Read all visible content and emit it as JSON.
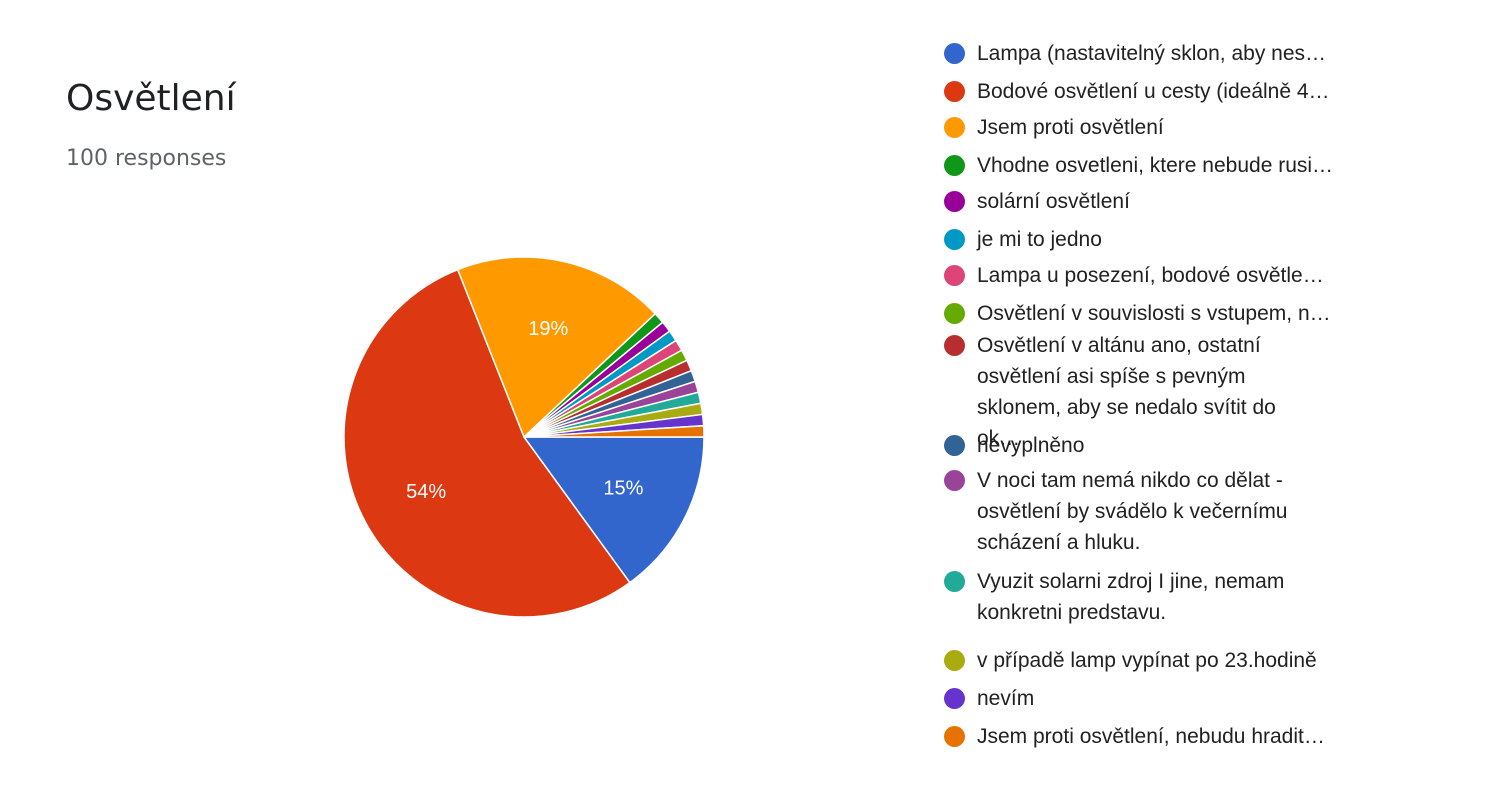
{
  "header": {
    "title": "Osvětlení",
    "subtitle": "100 responses"
  },
  "chart_data": {
    "type": "pie",
    "title": "Osvětlení",
    "total_responses": 100,
    "slices": [
      {
        "label": "Lampa (nastavitelný sklon, aby nes…",
        "value": 15,
        "color": "#3366cc",
        "display": "15%"
      },
      {
        "label": "Bodové osvětlení u cesty (ideálně 4…",
        "value": 54,
        "color": "#dc3912",
        "display": "54%"
      },
      {
        "label": "Jsem proti osvětlení",
        "value": 19,
        "color": "#ff9900",
        "display": "19%"
      },
      {
        "label": "Vhodne osvetleni, ktere nebude rusi…",
        "value": 1,
        "color": "#109618",
        "display": ""
      },
      {
        "label": "solární osvětlení",
        "value": 1,
        "color": "#990099",
        "display": ""
      },
      {
        "label": "je mi to jedno",
        "value": 1,
        "color": "#0099c6",
        "display": ""
      },
      {
        "label": "Lampa u posezení, bodové osvětle…",
        "value": 1,
        "color": "#dd4477",
        "display": ""
      },
      {
        "label": "Osvětlení v souvislosti s vstupem, n…",
        "value": 1,
        "color": "#66aa00",
        "display": ""
      },
      {
        "label": "Osvětlení v altánu ano, ostatní osvětlení asi spíše s pevným sklonem, aby se nedalo svítit do ok…",
        "value": 1,
        "color": "#b82e2e",
        "display": ""
      },
      {
        "label": "nevyplněno",
        "value": 1,
        "color": "#316395",
        "display": ""
      },
      {
        "label": "V noci tam nemá nikdo co dělat - osvětlení by svádělo k večernímu scházení a hluku.",
        "value": 1,
        "color": "#994499",
        "display": ""
      },
      {
        "label": "Vyuzit solarni zdroj I jine, nemam konkretni predstavu.",
        "value": 1,
        "color": "#22aa99",
        "display": ""
      },
      {
        "label": "v případě lamp vypínat po 23.hodině",
        "value": 1,
        "color": "#aaaa11",
        "display": ""
      },
      {
        "label": "nevím",
        "value": 1,
        "color": "#6633cc",
        "display": ""
      },
      {
        "label": "Jsem proti osvětlení, nebudu hradit…",
        "value": 1,
        "color": "#e67300",
        "display": ""
      }
    ],
    "legend_position": "right"
  }
}
